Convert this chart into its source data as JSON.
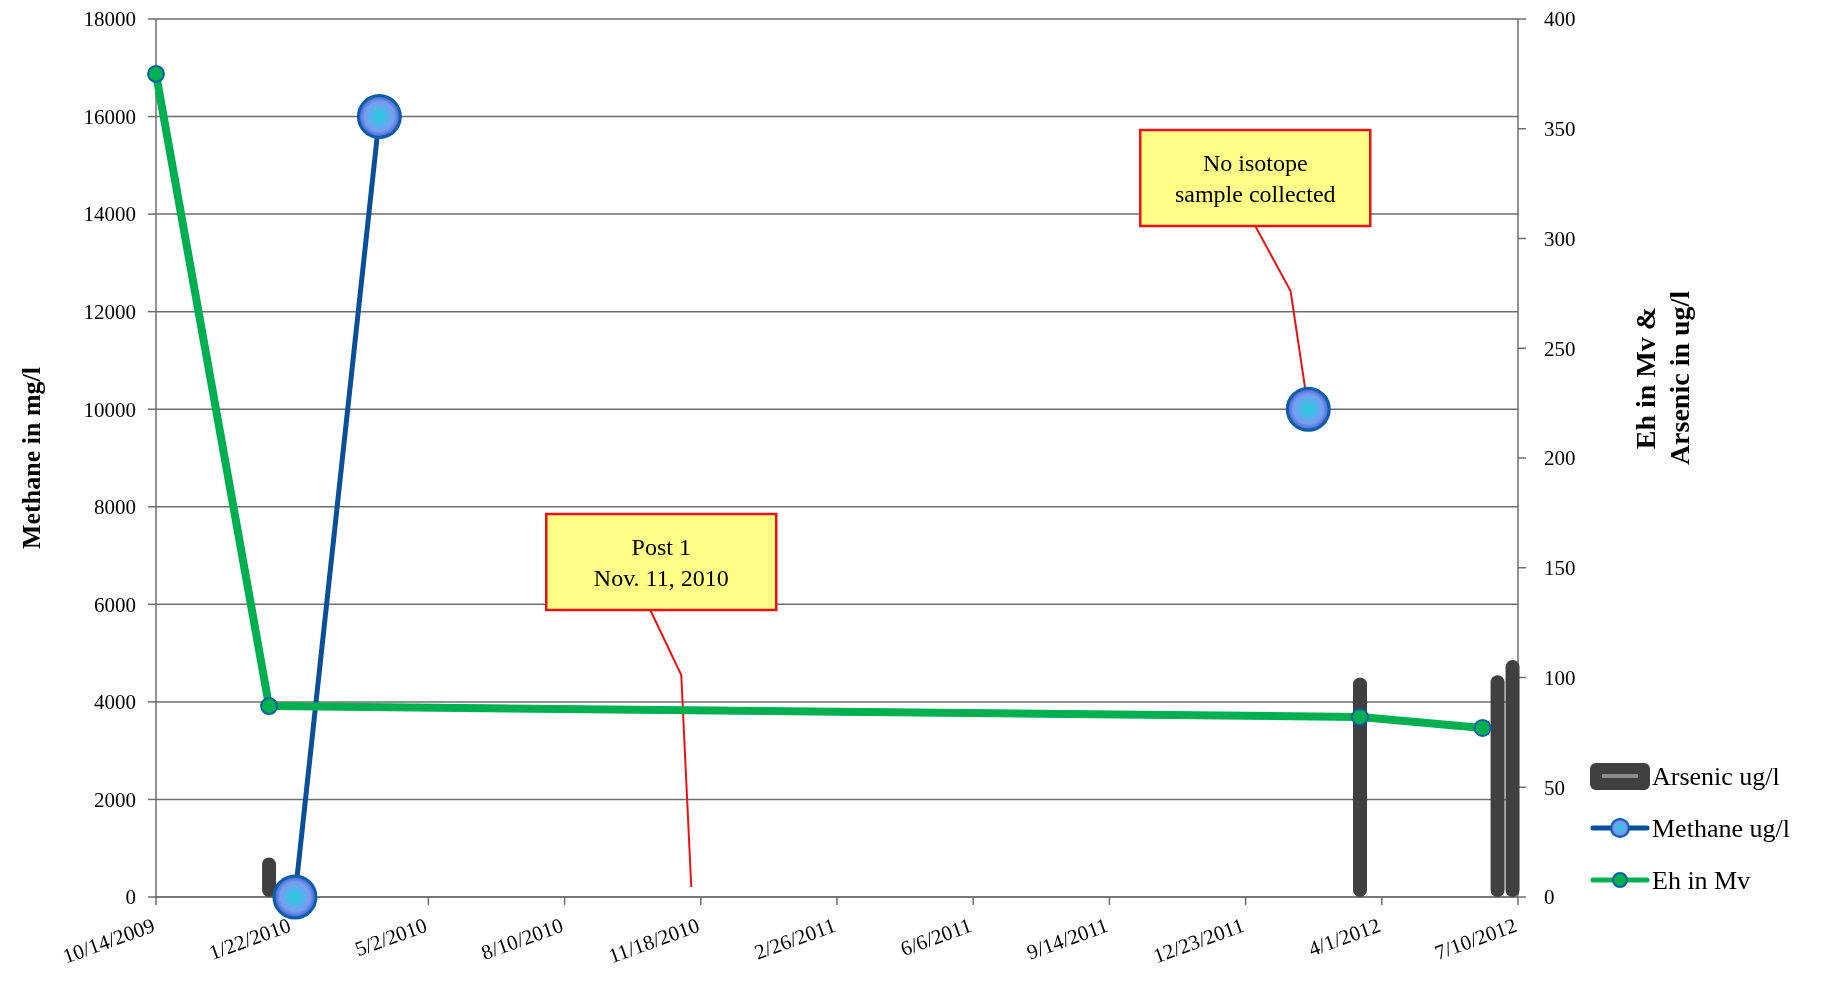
{
  "chart_data": {
    "type": "line",
    "xlabel": null,
    "ylabel": "Methane in mg/l",
    "y2label": "Eh in Mv &\nArsenic in ug/l",
    "xlim": [
      "2009-10-14",
      "2012-07-10"
    ],
    "xticks": [
      {
        "value": "2009-10-14",
        "label": "10/14/2009"
      },
      {
        "value": "2010-01-22",
        "label": "1/22/2010"
      },
      {
        "value": "2010-05-02",
        "label": "5/2/2010"
      },
      {
        "value": "2010-08-10",
        "label": "8/10/2010"
      },
      {
        "value": "2010-11-18",
        "label": "11/18/2010"
      },
      {
        "value": "2011-02-26",
        "label": "2/26/2011"
      },
      {
        "value": "2011-06-06",
        "label": "6/6/2011"
      },
      {
        "value": "2011-09-14",
        "label": "9/14/2011"
      },
      {
        "value": "2011-12-23",
        "label": "12/23/2011"
      },
      {
        "value": "2012-04-01",
        "label": "4/1/2012"
      },
      {
        "value": "2012-07-10",
        "label": "7/10/2012"
      }
    ],
    "ylim": [
      0,
      18000
    ],
    "yticks": [
      0,
      2000,
      4000,
      6000,
      8000,
      10000,
      12000,
      14000,
      16000,
      18000
    ],
    "y2lim": [
      0,
      400
    ],
    "y2ticks": [
      0,
      50,
      100,
      150,
      200,
      250,
      300,
      350,
      400
    ],
    "grid": "y",
    "legend": "right",
    "series": [
      {
        "name": "Arsenic ug/l",
        "type": "bar",
        "axis": "y2",
        "color": "#404040",
        "x": [
          "2010-01-05",
          "2012-03-16",
          "2012-06-25",
          "2012-07-06"
        ],
        "values": [
          18,
          100,
          101,
          108
        ]
      },
      {
        "name": "Methane ug/l",
        "axis": "y",
        "color": "#0a4f9a",
        "marker": "circle",
        "x": [
          "2010-01-24",
          "2010-03-27",
          "2011-09-01",
          "2012-02-07"
        ],
        "values": [
          0,
          16000,
          null,
          10000
        ]
      },
      {
        "name": "Eh in Mv",
        "axis": "y2",
        "color": "#00b050",
        "marker": "circle",
        "x": [
          "2009-10-14",
          "2010-01-05",
          "2012-03-16",
          "2012-06-14"
        ],
        "values": [
          375,
          87,
          82,
          77
        ]
      }
    ],
    "annotations": [
      "Post 1\nNov. 11, 2010",
      {
        "text": "No isotope\nsample collected",
        "x": "2012-02-07",
        "y": 10000
      }
    ]
  }
}
